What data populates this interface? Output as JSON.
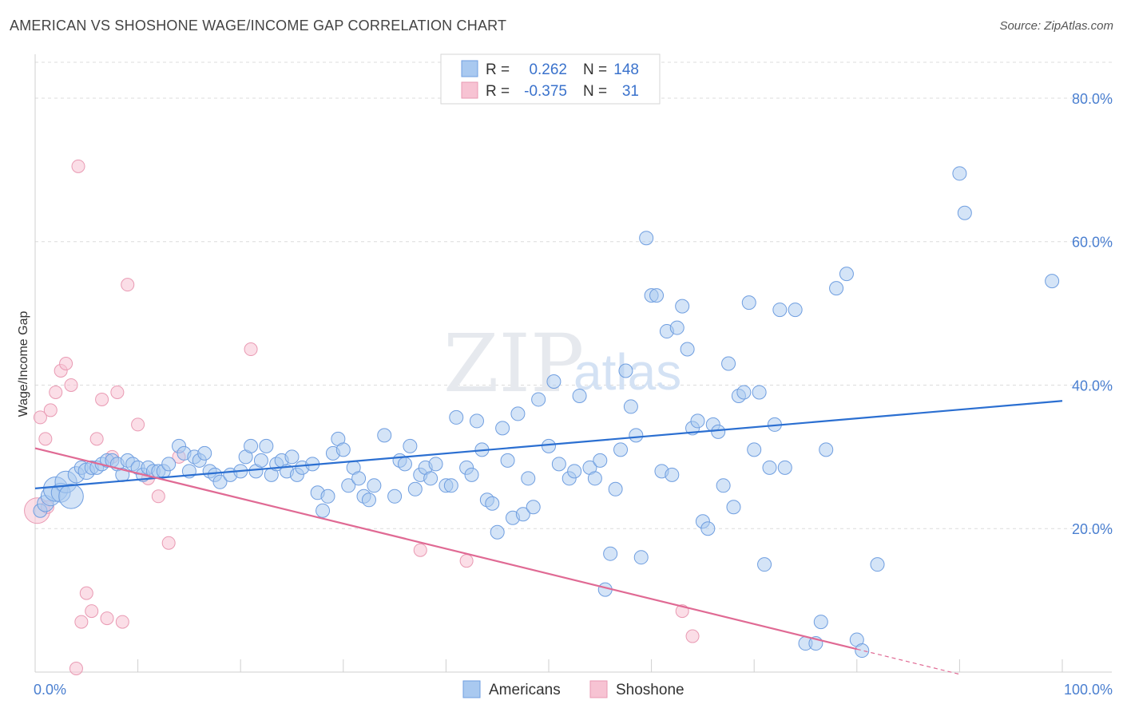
{
  "title": "AMERICAN VS SHOSHONE WAGE/INCOME GAP CORRELATION CHART",
  "source": "Source: ZipAtlas.com",
  "watermark": {
    "zip": "ZIP",
    "atlas": "atlas"
  },
  "colors": {
    "blue_fill": "#a9c9f0",
    "blue_stroke": "#6f9ee0",
    "blue_line": "#2b6fd1",
    "pink_fill": "#f7c3d3",
    "pink_stroke": "#e99ab3",
    "pink_line": "#e06a94",
    "grid": "#dcdcdc",
    "tick_text": "#4a7fd0"
  },
  "legend": {
    "r_label": "R =",
    "n_label": "N =",
    "rows": [
      {
        "r": "0.262",
        "n": "148"
      },
      {
        "r": "-0.375",
        "n": "31"
      }
    ]
  },
  "chart_data": {
    "type": "scatter",
    "xlabel": "",
    "ylabel": "Wage/Income Gap",
    "xlim": [
      0,
      100
    ],
    "ylim": [
      0,
      85
    ],
    "x_tick_labels": [
      "0.0%",
      "100.0%"
    ],
    "y_ticks": [
      20,
      40,
      60,
      80
    ],
    "y_tick_labels": [
      "20.0%",
      "40.0%",
      "60.0%",
      "80.0%"
    ],
    "grid": "horizontal-dashed",
    "legend_position": "top-center",
    "series": [
      {
        "name": "Americans",
        "regression": {
          "x0": 0,
          "y0": 25.6,
          "x1": 100,
          "y1": 37.8
        },
        "points": [
          [
            0.5,
            22.5,
            10
          ],
          [
            1,
            23.5,
            12
          ],
          [
            1.5,
            24.5,
            14
          ],
          [
            2,
            25.5,
            18
          ],
          [
            2.5,
            25,
            14
          ],
          [
            3,
            26.5,
            16
          ],
          [
            3.5,
            24.5,
            18
          ],
          [
            4,
            27.5,
            12
          ],
          [
            4.5,
            28.5,
            10
          ],
          [
            5,
            28,
            12
          ],
          [
            5.5,
            28.5,
            10
          ],
          [
            6,
            28.5,
            10
          ],
          [
            6.5,
            29,
            10
          ],
          [
            7,
            29.5,
            10
          ],
          [
            7.5,
            29.5,
            10
          ],
          [
            8,
            29,
            10
          ],
          [
            8.5,
            27.5,
            10
          ],
          [
            9,
            29.5,
            10
          ],
          [
            9.5,
            29,
            10
          ],
          [
            10,
            28.5,
            10
          ],
          [
            10.5,
            27.5,
            10
          ],
          [
            11,
            28.5,
            10
          ],
          [
            11.5,
            28,
            10
          ],
          [
            12,
            28,
            10
          ],
          [
            12.5,
            28,
            10
          ],
          [
            13,
            29,
            10
          ],
          [
            14,
            31.5,
            10
          ],
          [
            14.5,
            30.5,
            10
          ],
          [
            15,
            28,
            10
          ],
          [
            15.5,
            30,
            10
          ],
          [
            16,
            29.5,
            10
          ],
          [
            16.5,
            30.5,
            10
          ],
          [
            17,
            28,
            10
          ],
          [
            17.5,
            27.5,
            10
          ],
          [
            18,
            26.5,
            10
          ],
          [
            19,
            27.5,
            10
          ],
          [
            20,
            28,
            10
          ],
          [
            20.5,
            30,
            10
          ],
          [
            21,
            31.5,
            10
          ],
          [
            21.5,
            28,
            10
          ],
          [
            22,
            29.5,
            10
          ],
          [
            22.5,
            31.5,
            10
          ],
          [
            23,
            27.5,
            10
          ],
          [
            23.5,
            29,
            10
          ],
          [
            24,
            29.5,
            10
          ],
          [
            24.5,
            28,
            10
          ],
          [
            25,
            30,
            10
          ],
          [
            25.5,
            27.5,
            10
          ],
          [
            26,
            28.5,
            10
          ],
          [
            27,
            29,
            10
          ],
          [
            27.5,
            25,
            10
          ],
          [
            28,
            22.5,
            10
          ],
          [
            28.5,
            24.5,
            10
          ],
          [
            29,
            30.5,
            10
          ],
          [
            29.5,
            32.5,
            10
          ],
          [
            30,
            31,
            10
          ],
          [
            30.5,
            26,
            10
          ],
          [
            31,
            28.5,
            10
          ],
          [
            31.5,
            27,
            10
          ],
          [
            32,
            24.5,
            10
          ],
          [
            32.5,
            24,
            10
          ],
          [
            33,
            26,
            10
          ],
          [
            34,
            33,
            10
          ],
          [
            35,
            24.5,
            10
          ],
          [
            35.5,
            29.5,
            10
          ],
          [
            36,
            29,
            10
          ],
          [
            36.5,
            31.5,
            10
          ],
          [
            37,
            25.5,
            10
          ],
          [
            37.5,
            27.5,
            10
          ],
          [
            38,
            28.5,
            10
          ],
          [
            38.5,
            27,
            10
          ],
          [
            39,
            29,
            10
          ],
          [
            40,
            26,
            10
          ],
          [
            40.5,
            26,
            10
          ],
          [
            41,
            35.5,
            10
          ],
          [
            42,
            28.5,
            10
          ],
          [
            42.5,
            27.5,
            10
          ],
          [
            43,
            35,
            10
          ],
          [
            43.5,
            31,
            10
          ],
          [
            44,
            24,
            10
          ],
          [
            44.5,
            23.5,
            10
          ],
          [
            45,
            19.5,
            10
          ],
          [
            45.5,
            34,
            10
          ],
          [
            46,
            29.5,
            10
          ],
          [
            46.5,
            21.5,
            10
          ],
          [
            47,
            36,
            10
          ],
          [
            47.5,
            22,
            10
          ],
          [
            48,
            27,
            10
          ],
          [
            48.5,
            23,
            10
          ],
          [
            49,
            38,
            10
          ],
          [
            50,
            31.5,
            10
          ],
          [
            50.5,
            40.5,
            10
          ],
          [
            51,
            29,
            10
          ],
          [
            52,
            27,
            10
          ],
          [
            52.5,
            28,
            10
          ],
          [
            53,
            38.5,
            10
          ],
          [
            54,
            28.5,
            10
          ],
          [
            54.5,
            27,
            10
          ],
          [
            55,
            29.5,
            10
          ],
          [
            55.5,
            11.5,
            10
          ],
          [
            56,
            16.5,
            10
          ],
          [
            56.5,
            25.5,
            10
          ],
          [
            57,
            31,
            10
          ],
          [
            57.5,
            42,
            10
          ],
          [
            58,
            37,
            10
          ],
          [
            58.5,
            33,
            10
          ],
          [
            59,
            16,
            10
          ],
          [
            59.5,
            60.5,
            10
          ],
          [
            60,
            52.5,
            10
          ],
          [
            60.5,
            52.5,
            10
          ],
          [
            61,
            28,
            10
          ],
          [
            61.5,
            47.5,
            10
          ],
          [
            62,
            27.5,
            10
          ],
          [
            62.5,
            48,
            10
          ],
          [
            63,
            51,
            10
          ],
          [
            63.5,
            45,
            10
          ],
          [
            64,
            34,
            10
          ],
          [
            64.5,
            35,
            10
          ],
          [
            65,
            21,
            10
          ],
          [
            65.5,
            20,
            10
          ],
          [
            66,
            34.5,
            10
          ],
          [
            66.5,
            33.5,
            10
          ],
          [
            67,
            26,
            10
          ],
          [
            67.5,
            43,
            10
          ],
          [
            68,
            23,
            10
          ],
          [
            68.5,
            38.5,
            10
          ],
          [
            69,
            39,
            10
          ],
          [
            69.5,
            51.5,
            10
          ],
          [
            70,
            31,
            10
          ],
          [
            70.5,
            39,
            10
          ],
          [
            71,
            15,
            10
          ],
          [
            71.5,
            28.5,
            10
          ],
          [
            72,
            34.5,
            10
          ],
          [
            72.5,
            50.5,
            10
          ],
          [
            73,
            28.5,
            10
          ],
          [
            74,
            50.5,
            10
          ],
          [
            75,
            4,
            10
          ],
          [
            76,
            4,
            10
          ],
          [
            76.5,
            7,
            10
          ],
          [
            77,
            31,
            10
          ],
          [
            78,
            53.5,
            10
          ],
          [
            79,
            55.5,
            10
          ],
          [
            80,
            4.5,
            10
          ],
          [
            80.5,
            3,
            10
          ],
          [
            82,
            15,
            10
          ],
          [
            90,
            69.5,
            10
          ],
          [
            90.5,
            64,
            10
          ],
          [
            99,
            54.5,
            10
          ]
        ]
      },
      {
        "name": "Shoshone",
        "regression": {
          "x0": 0,
          "y0": 31.2,
          "x1": 80,
          "y1": 3.2
        },
        "regression_dashed": {
          "x0": 80,
          "y0": 3.2,
          "x1": 90,
          "y1": -0.3
        },
        "points": [
          [
            0.2,
            22.5,
            20
          ],
          [
            0.5,
            35.5,
            10
          ],
          [
            1,
            32.5,
            10
          ],
          [
            1.5,
            36.5,
            10
          ],
          [
            2,
            39,
            10
          ],
          [
            2.5,
            42,
            10
          ],
          [
            3,
            43,
            10
          ],
          [
            3.5,
            40,
            10
          ],
          [
            4,
            0.5,
            10
          ],
          [
            4.5,
            7,
            10
          ],
          [
            5,
            11,
            10
          ],
          [
            5.5,
            8.5,
            10
          ],
          [
            6,
            32.5,
            10
          ],
          [
            6.5,
            38,
            10
          ],
          [
            7,
            7.5,
            10
          ],
          [
            7.5,
            30,
            10
          ],
          [
            8,
            39,
            10
          ],
          [
            8.5,
            7,
            10
          ],
          [
            9,
            54,
            10
          ],
          [
            10,
            34.5,
            10
          ],
          [
            11,
            27,
            10
          ],
          [
            12,
            24.5,
            10
          ],
          [
            13,
            18,
            10
          ],
          [
            14,
            30,
            10
          ],
          [
            4.2,
            70.5,
            10
          ],
          [
            21,
            45,
            10
          ],
          [
            37.5,
            17,
            10
          ],
          [
            42,
            15.5,
            10
          ],
          [
            63,
            8.5,
            10
          ],
          [
            64,
            5,
            10
          ],
          [
            1.2,
            23,
            10
          ]
        ]
      }
    ]
  }
}
